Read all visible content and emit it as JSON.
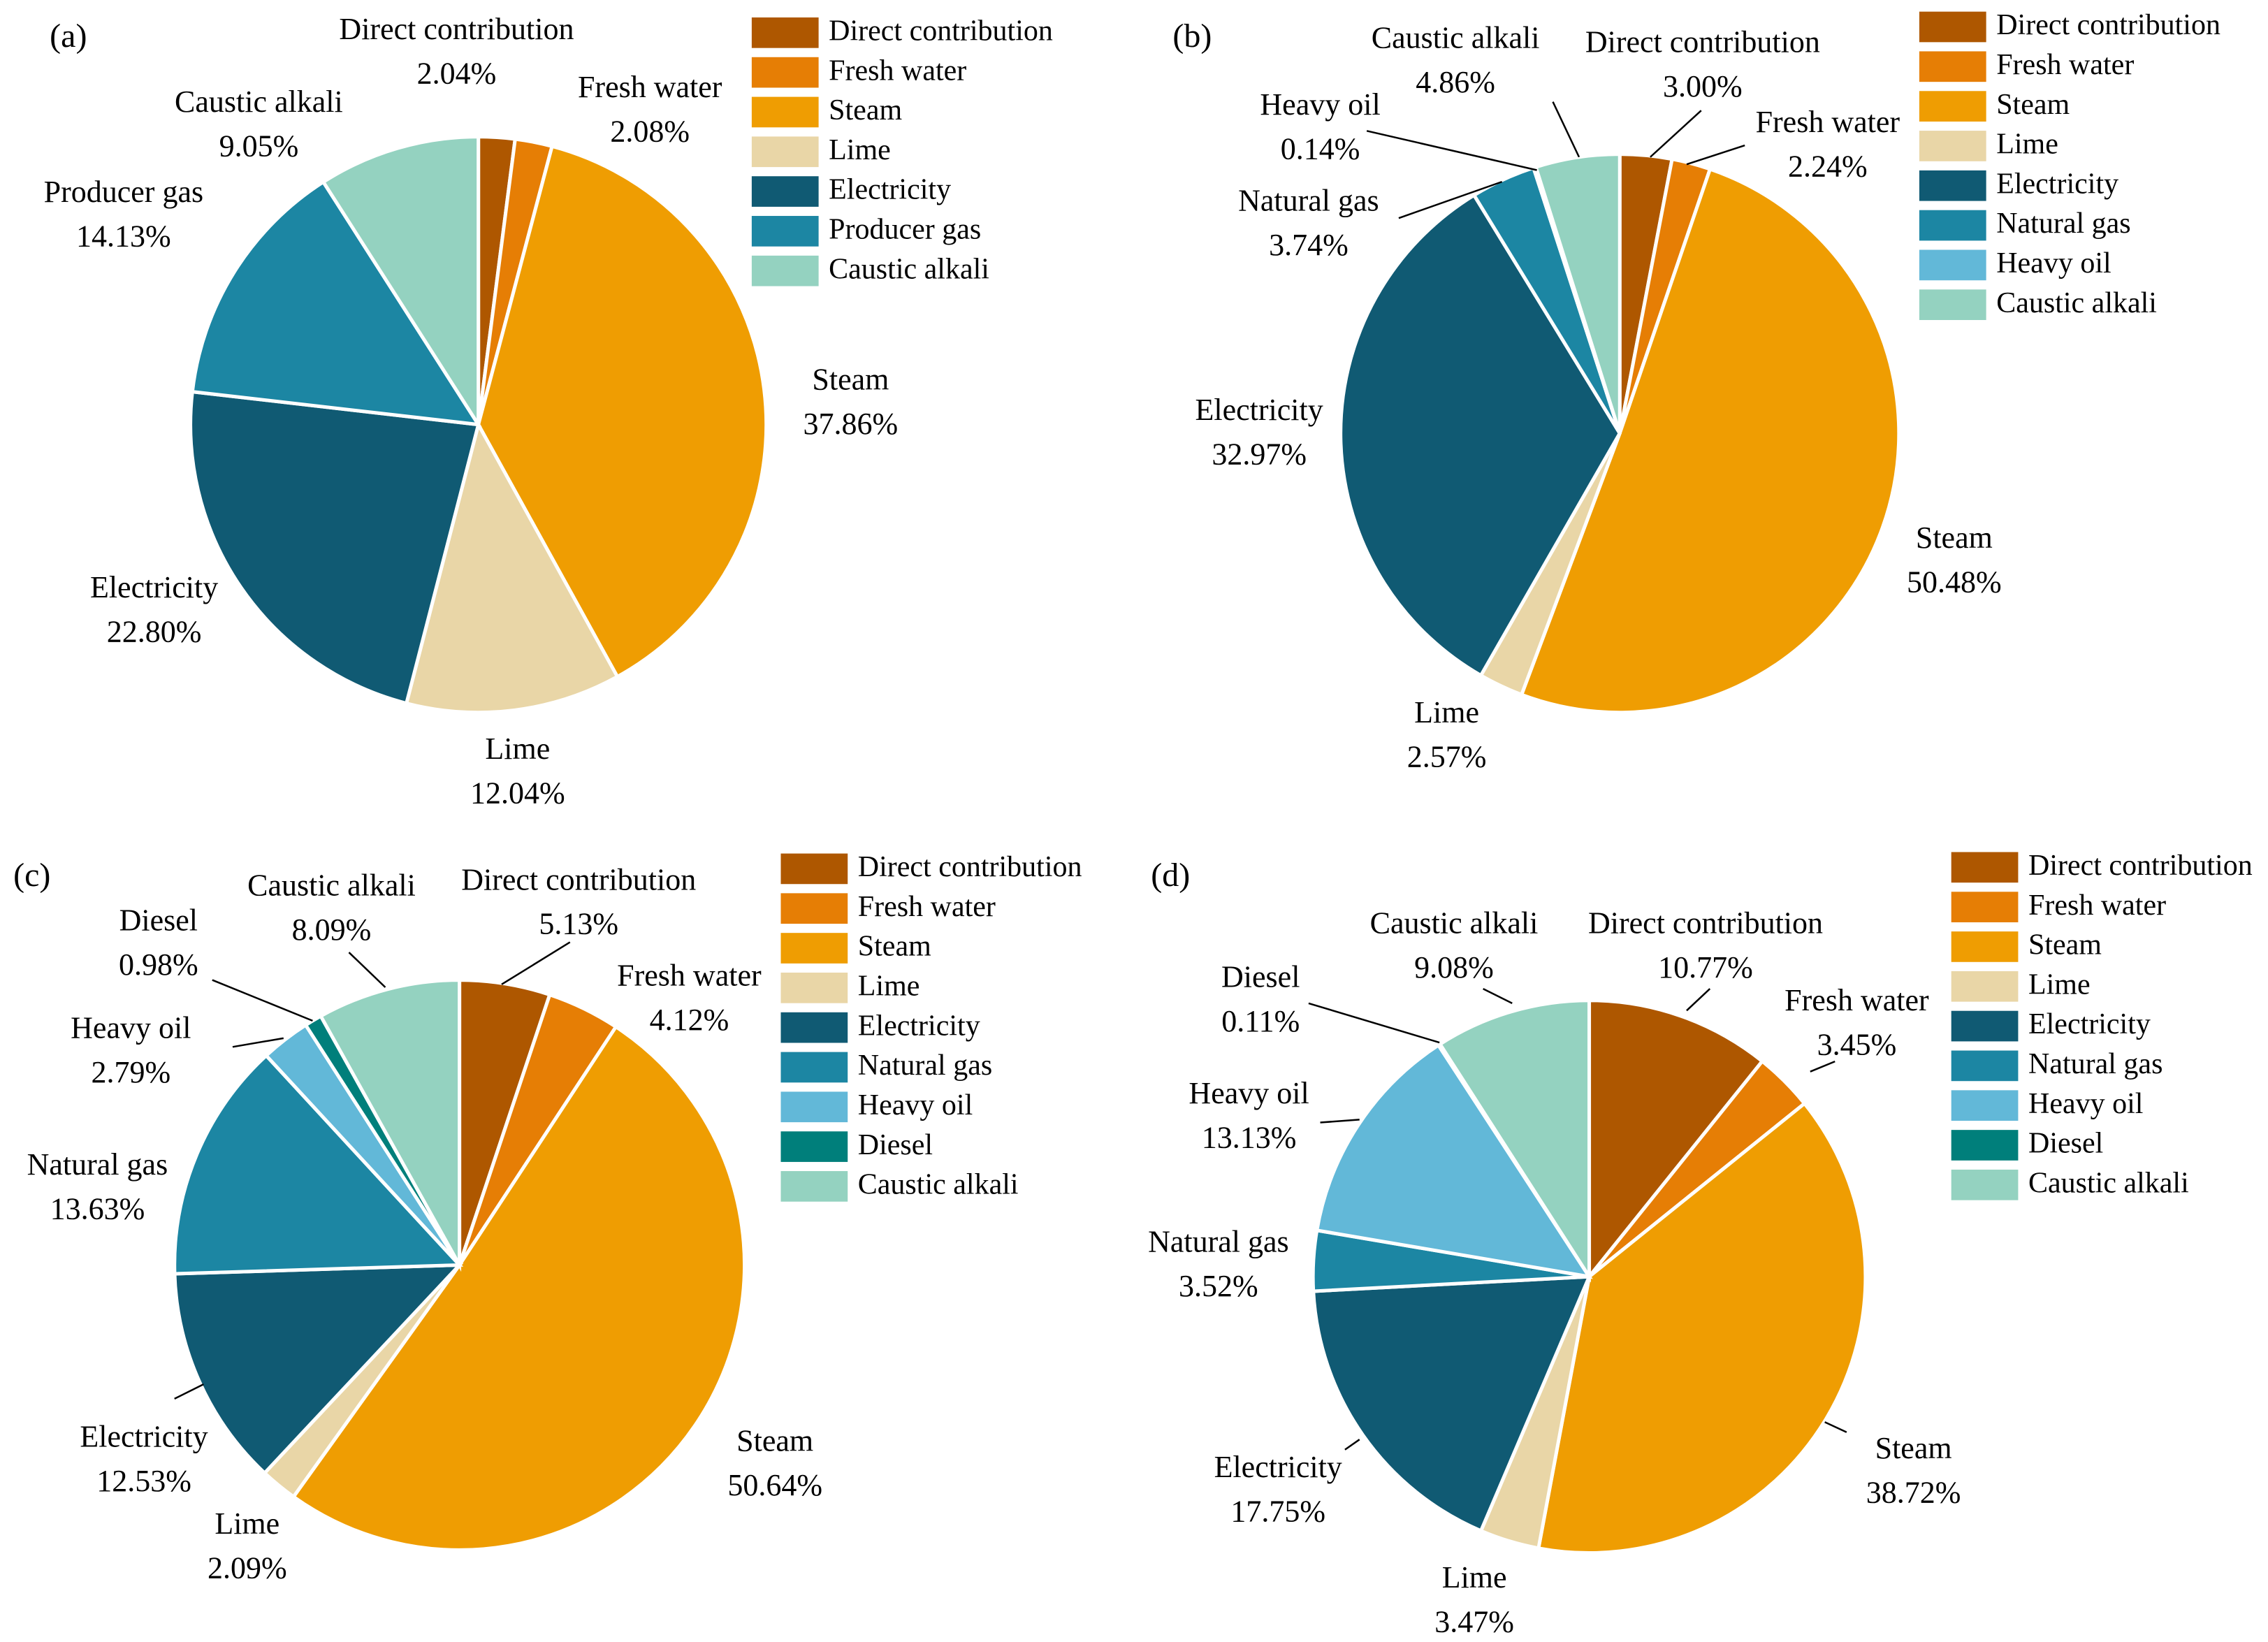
{
  "colors": {
    "Direct contribution": "#AE5700",
    "Fresh water": "#E67E05",
    "Steam": "#EF9D02",
    "Lime": "#E9D6A7",
    "Electricity": "#105A73",
    "Producer gas": "#1C86A3",
    "Natural gas": "#1C86A3",
    "Heavy oil": "#62B8D8",
    "Diesel": "#007F7B",
    "Caustic alkali": "#94D2C0"
  },
  "chart_data": [
    {
      "type": "pie",
      "panel_label": "(a)",
      "categories": [
        "Direct contribution",
        "Fresh water",
        "Steam",
        "Lime",
        "Electricity",
        "Producer gas",
        "Caustic alkali"
      ],
      "values": [
        2.04,
        2.08,
        37.86,
        12.04,
        22.8,
        14.13,
        9.05
      ],
      "value_labels": [
        "2.04%",
        "2.08%",
        "37.86%",
        "12.04%",
        "22.80%",
        "14.13%",
        "9.05%"
      ],
      "legend": [
        "Direct contribution",
        "Fresh water",
        "Steam",
        "Lime",
        "Electricity",
        "Producer gas",
        "Caustic alkali"
      ],
      "legend_placement": "top-right"
    },
    {
      "type": "pie",
      "panel_label": "(b)",
      "categories": [
        "Direct contribution",
        "Fresh water",
        "Steam",
        "Lime",
        "Electricity",
        "Natural gas",
        "Heavy oil",
        "Caustic alkali"
      ],
      "values": [
        3.0,
        2.24,
        50.48,
        2.57,
        32.97,
        3.74,
        0.14,
        4.86
      ],
      "value_labels": [
        "3.00%",
        "2.24%",
        "50.48%",
        "2.57%",
        "32.97%",
        "3.74%",
        "0.14%",
        "4.86%"
      ],
      "legend": [
        "Direct contribution",
        "Fresh water",
        "Steam",
        "Lime",
        "Electricity",
        "Natural gas",
        "Heavy oil",
        "Caustic alkali"
      ],
      "legend_placement": "top-right"
    },
    {
      "type": "pie",
      "panel_label": "(c)",
      "categories": [
        "Direct contribution",
        "Fresh water",
        "Steam",
        "Lime",
        "Electricity",
        "Natural gas",
        "Heavy oil",
        "Diesel",
        "Caustic alkali"
      ],
      "values": [
        5.13,
        4.12,
        50.64,
        2.09,
        12.53,
        13.63,
        2.79,
        0.98,
        8.09
      ],
      "value_labels": [
        "5.13%",
        "4.12%",
        "50.64%",
        "2.09%",
        "12.53%",
        "13.63%",
        "2.79%",
        "0.98%",
        "8.09%"
      ],
      "legend": [
        "Direct contribution",
        "Fresh water",
        "Steam",
        "Lime",
        "Electricity",
        "Natural gas",
        "Heavy oil",
        "Diesel",
        "Caustic alkali"
      ],
      "legend_placement": "top-right"
    },
    {
      "type": "pie",
      "panel_label": "(d)",
      "categories": [
        "Direct contribution",
        "Fresh water",
        "Steam",
        "Lime",
        "Electricity",
        "Natural gas",
        "Heavy oil",
        "Diesel",
        "Caustic alkali"
      ],
      "values": [
        10.77,
        3.45,
        38.72,
        3.47,
        17.75,
        3.52,
        13.13,
        0.11,
        9.08
      ],
      "value_labels": [
        "10.77%",
        "3.45%",
        "38.72%",
        "3.47%",
        "17.75%",
        "3.52%",
        "13.13%",
        "0.11%",
        "9.08%"
      ],
      "legend": [
        "Direct contribution",
        "Fresh water",
        "Steam",
        "Lime",
        "Electricity",
        "Natural gas",
        "Heavy oil",
        "Diesel",
        "Caustic alkali"
      ],
      "legend_placement": "top-right"
    }
  ]
}
